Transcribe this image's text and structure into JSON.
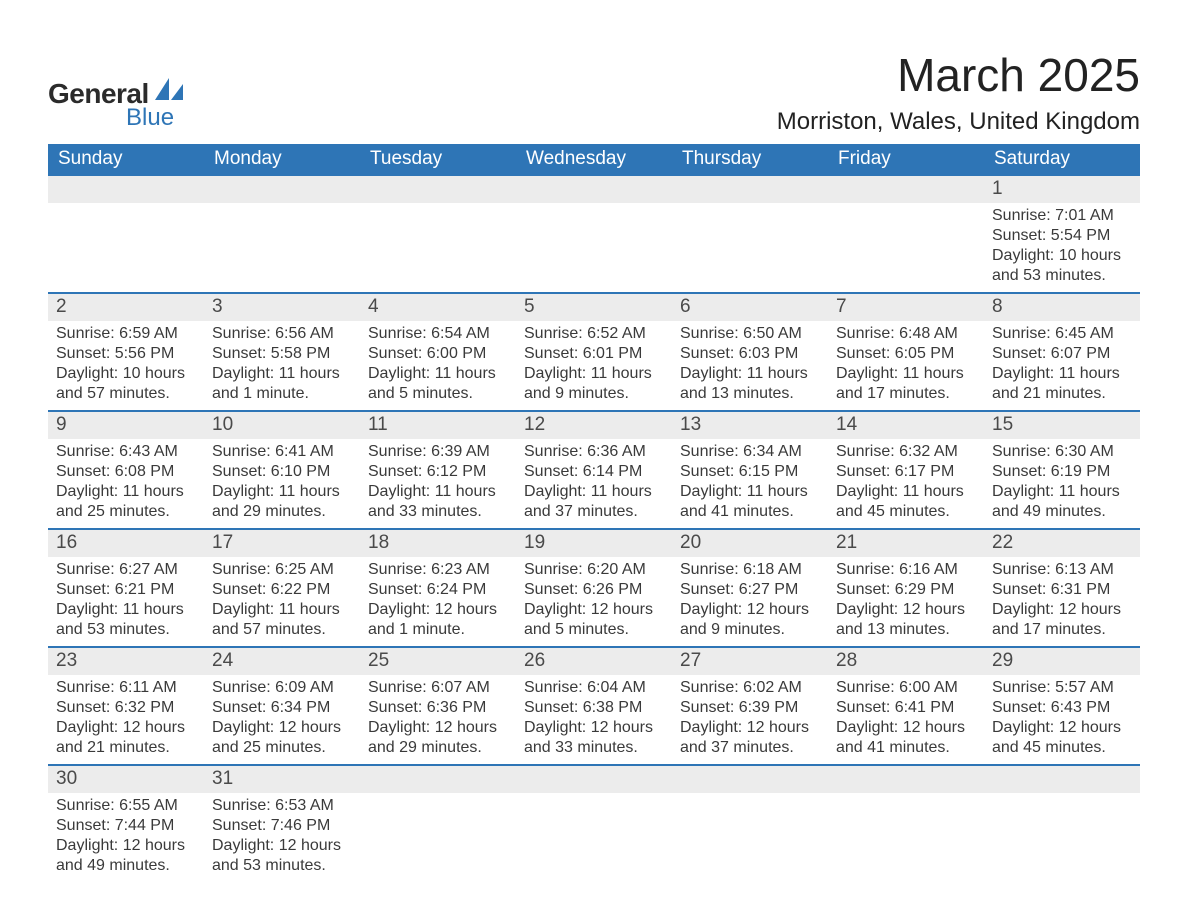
{
  "logo": {
    "line1": "General",
    "line2": "Blue",
    "icon_color": "#2e75b6"
  },
  "title": "March 2025",
  "location": "Morriston, Wales, United Kingdom",
  "colors": {
    "header_bg": "#2e75b6",
    "header_text": "#ffffff",
    "daynum_bg": "#ececec",
    "border": "#2e75b6",
    "body_text": "#3a3a3a"
  },
  "day_headers": [
    "Sunday",
    "Monday",
    "Tuesday",
    "Wednesday",
    "Thursday",
    "Friday",
    "Saturday"
  ],
  "weeks": [
    [
      null,
      null,
      null,
      null,
      null,
      null,
      {
        "n": "1",
        "sunrise": "Sunrise: 7:01 AM",
        "sunset": "Sunset: 5:54 PM",
        "day1": "Daylight: 10 hours",
        "day2": "and 53 minutes."
      }
    ],
    [
      {
        "n": "2",
        "sunrise": "Sunrise: 6:59 AM",
        "sunset": "Sunset: 5:56 PM",
        "day1": "Daylight: 10 hours",
        "day2": "and 57 minutes."
      },
      {
        "n": "3",
        "sunrise": "Sunrise: 6:56 AM",
        "sunset": "Sunset: 5:58 PM",
        "day1": "Daylight: 11 hours",
        "day2": "and 1 minute."
      },
      {
        "n": "4",
        "sunrise": "Sunrise: 6:54 AM",
        "sunset": "Sunset: 6:00 PM",
        "day1": "Daylight: 11 hours",
        "day2": "and 5 minutes."
      },
      {
        "n": "5",
        "sunrise": "Sunrise: 6:52 AM",
        "sunset": "Sunset: 6:01 PM",
        "day1": "Daylight: 11 hours",
        "day2": "and 9 minutes."
      },
      {
        "n": "6",
        "sunrise": "Sunrise: 6:50 AM",
        "sunset": "Sunset: 6:03 PM",
        "day1": "Daylight: 11 hours",
        "day2": "and 13 minutes."
      },
      {
        "n": "7",
        "sunrise": "Sunrise: 6:48 AM",
        "sunset": "Sunset: 6:05 PM",
        "day1": "Daylight: 11 hours",
        "day2": "and 17 minutes."
      },
      {
        "n": "8",
        "sunrise": "Sunrise: 6:45 AM",
        "sunset": "Sunset: 6:07 PM",
        "day1": "Daylight: 11 hours",
        "day2": "and 21 minutes."
      }
    ],
    [
      {
        "n": "9",
        "sunrise": "Sunrise: 6:43 AM",
        "sunset": "Sunset: 6:08 PM",
        "day1": "Daylight: 11 hours",
        "day2": "and 25 minutes."
      },
      {
        "n": "10",
        "sunrise": "Sunrise: 6:41 AM",
        "sunset": "Sunset: 6:10 PM",
        "day1": "Daylight: 11 hours",
        "day2": "and 29 minutes."
      },
      {
        "n": "11",
        "sunrise": "Sunrise: 6:39 AM",
        "sunset": "Sunset: 6:12 PM",
        "day1": "Daylight: 11 hours",
        "day2": "and 33 minutes."
      },
      {
        "n": "12",
        "sunrise": "Sunrise: 6:36 AM",
        "sunset": "Sunset: 6:14 PM",
        "day1": "Daylight: 11 hours",
        "day2": "and 37 minutes."
      },
      {
        "n": "13",
        "sunrise": "Sunrise: 6:34 AM",
        "sunset": "Sunset: 6:15 PM",
        "day1": "Daylight: 11 hours",
        "day2": "and 41 minutes."
      },
      {
        "n": "14",
        "sunrise": "Sunrise: 6:32 AM",
        "sunset": "Sunset: 6:17 PM",
        "day1": "Daylight: 11 hours",
        "day2": "and 45 minutes."
      },
      {
        "n": "15",
        "sunrise": "Sunrise: 6:30 AM",
        "sunset": "Sunset: 6:19 PM",
        "day1": "Daylight: 11 hours",
        "day2": "and 49 minutes."
      }
    ],
    [
      {
        "n": "16",
        "sunrise": "Sunrise: 6:27 AM",
        "sunset": "Sunset: 6:21 PM",
        "day1": "Daylight: 11 hours",
        "day2": "and 53 minutes."
      },
      {
        "n": "17",
        "sunrise": "Sunrise: 6:25 AM",
        "sunset": "Sunset: 6:22 PM",
        "day1": "Daylight: 11 hours",
        "day2": "and 57 minutes."
      },
      {
        "n": "18",
        "sunrise": "Sunrise: 6:23 AM",
        "sunset": "Sunset: 6:24 PM",
        "day1": "Daylight: 12 hours",
        "day2": "and 1 minute."
      },
      {
        "n": "19",
        "sunrise": "Sunrise: 6:20 AM",
        "sunset": "Sunset: 6:26 PM",
        "day1": "Daylight: 12 hours",
        "day2": "and 5 minutes."
      },
      {
        "n": "20",
        "sunrise": "Sunrise: 6:18 AM",
        "sunset": "Sunset: 6:27 PM",
        "day1": "Daylight: 12 hours",
        "day2": "and 9 minutes."
      },
      {
        "n": "21",
        "sunrise": "Sunrise: 6:16 AM",
        "sunset": "Sunset: 6:29 PM",
        "day1": "Daylight: 12 hours",
        "day2": "and 13 minutes."
      },
      {
        "n": "22",
        "sunrise": "Sunrise: 6:13 AM",
        "sunset": "Sunset: 6:31 PM",
        "day1": "Daylight: 12 hours",
        "day2": "and 17 minutes."
      }
    ],
    [
      {
        "n": "23",
        "sunrise": "Sunrise: 6:11 AM",
        "sunset": "Sunset: 6:32 PM",
        "day1": "Daylight: 12 hours",
        "day2": "and 21 minutes."
      },
      {
        "n": "24",
        "sunrise": "Sunrise: 6:09 AM",
        "sunset": "Sunset: 6:34 PM",
        "day1": "Daylight: 12 hours",
        "day2": "and 25 minutes."
      },
      {
        "n": "25",
        "sunrise": "Sunrise: 6:07 AM",
        "sunset": "Sunset: 6:36 PM",
        "day1": "Daylight: 12 hours",
        "day2": "and 29 minutes."
      },
      {
        "n": "26",
        "sunrise": "Sunrise: 6:04 AM",
        "sunset": "Sunset: 6:38 PM",
        "day1": "Daylight: 12 hours",
        "day2": "and 33 minutes."
      },
      {
        "n": "27",
        "sunrise": "Sunrise: 6:02 AM",
        "sunset": "Sunset: 6:39 PM",
        "day1": "Daylight: 12 hours",
        "day2": "and 37 minutes."
      },
      {
        "n": "28",
        "sunrise": "Sunrise: 6:00 AM",
        "sunset": "Sunset: 6:41 PM",
        "day1": "Daylight: 12 hours",
        "day2": "and 41 minutes."
      },
      {
        "n": "29",
        "sunrise": "Sunrise: 5:57 AM",
        "sunset": "Sunset: 6:43 PM",
        "day1": "Daylight: 12 hours",
        "day2": "and 45 minutes."
      }
    ],
    [
      {
        "n": "30",
        "sunrise": "Sunrise: 6:55 AM",
        "sunset": "Sunset: 7:44 PM",
        "day1": "Daylight: 12 hours",
        "day2": "and 49 minutes."
      },
      {
        "n": "31",
        "sunrise": "Sunrise: 6:53 AM",
        "sunset": "Sunset: 7:46 PM",
        "day1": "Daylight: 12 hours",
        "day2": "and 53 minutes."
      },
      null,
      null,
      null,
      null,
      null
    ]
  ]
}
